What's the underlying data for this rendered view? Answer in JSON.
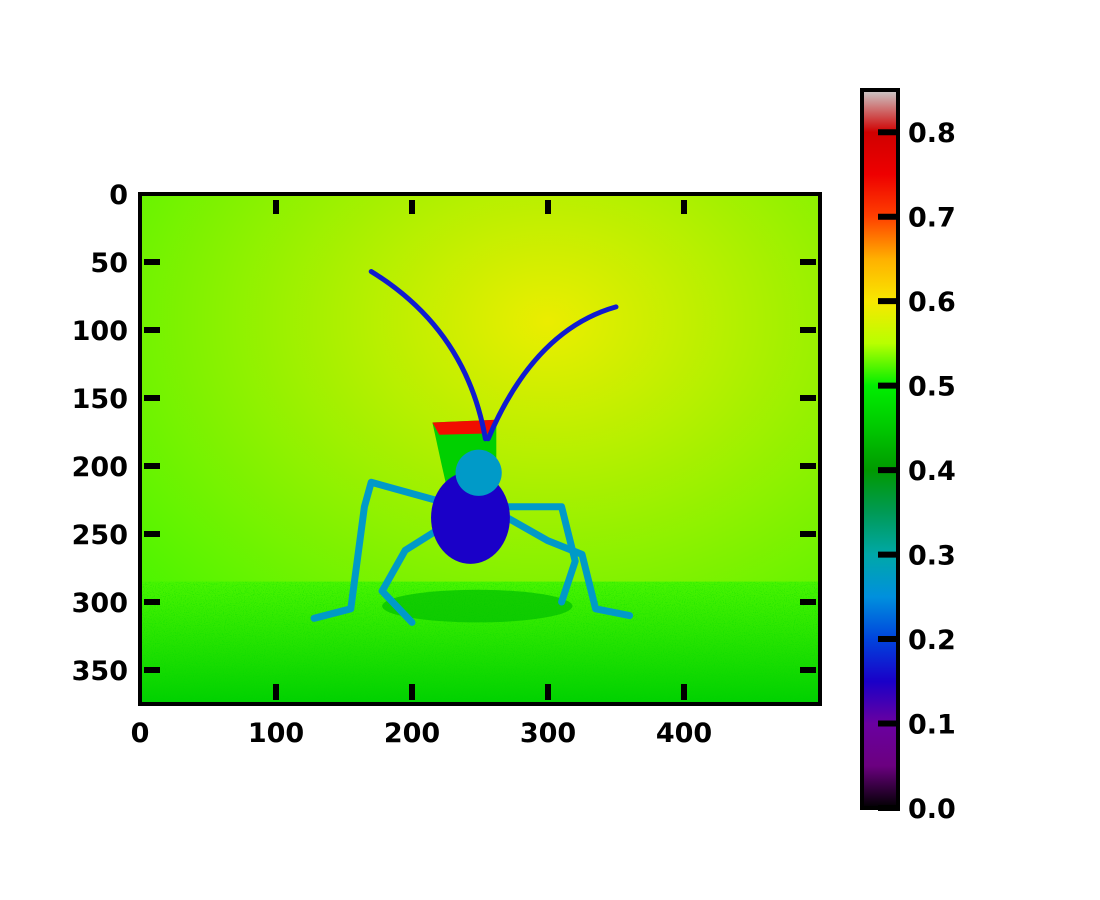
{
  "chart_data": {
    "type": "heatmap",
    "title": "",
    "xlabel": "",
    "ylabel": "",
    "image_size": {
      "width": 500,
      "height": 375
    },
    "xlim": [
      0,
      500
    ],
    "ylim": [
      375,
      0
    ],
    "x_ticks": [
      0,
      100,
      200,
      300,
      400
    ],
    "x_tick_labels": [
      "0",
      "100",
      "200",
      "300",
      "400"
    ],
    "y_ticks": [
      0,
      50,
      100,
      150,
      200,
      250,
      300,
      350
    ],
    "y_tick_labels": [
      "0",
      "50",
      "100",
      "150",
      "200",
      "250",
      "300",
      "350"
    ],
    "colormap": "nipy_spectral",
    "colorbar": {
      "range": [
        0.0,
        0.85
      ],
      "ticks": [
        0.0,
        0.1,
        0.2,
        0.3,
        0.4,
        0.5,
        0.6,
        0.7,
        0.8
      ],
      "tick_labels": [
        "0.0",
        "0.1",
        "0.2",
        "0.3",
        "0.4",
        "0.5",
        "0.6",
        "0.7",
        "0.8"
      ],
      "stops": [
        {
          "value": 0.0,
          "color": "#000000"
        },
        {
          "value": 0.05,
          "color": "#6b0080"
        },
        {
          "value": 0.1,
          "color": "#6a00a0"
        },
        {
          "value": 0.15,
          "color": "#1a00c8"
        },
        {
          "value": 0.2,
          "color": "#0044dd"
        },
        {
          "value": 0.25,
          "color": "#0090dd"
        },
        {
          "value": 0.3,
          "color": "#00a8a8"
        },
        {
          "value": 0.35,
          "color": "#009a55"
        },
        {
          "value": 0.4,
          "color": "#009a00"
        },
        {
          "value": 0.45,
          "color": "#00c800"
        },
        {
          "value": 0.5,
          "color": "#00ee00"
        },
        {
          "value": 0.55,
          "color": "#b8ff00"
        },
        {
          "value": 0.6,
          "color": "#f8e800"
        },
        {
          "value": 0.65,
          "color": "#ffb000"
        },
        {
          "value": 0.7,
          "color": "#ff4000"
        },
        {
          "value": 0.75,
          "color": "#ee0000"
        },
        {
          "value": 0.8,
          "color": "#d00000"
        },
        {
          "value": 0.85,
          "color": "#cccccc"
        }
      ]
    },
    "field": {
      "background_center_value": 0.59,
      "background_edge_value": 0.52,
      "ground_band_start_y": 285,
      "ground_value": 0.46,
      "insect_body_value": 0.15,
      "insect_limb_value": 0.27,
      "insect_antenna_value": 0.17,
      "insect_head_rim_value": 0.74
    },
    "colors": {
      "axes_frame": "#000000",
      "background": "#ffffff"
    }
  }
}
